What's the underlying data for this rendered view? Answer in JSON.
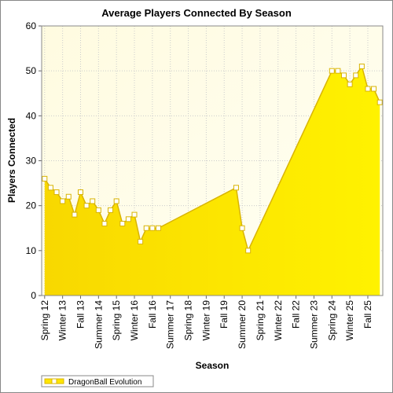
{
  "chart_data": {
    "type": "area",
    "title": "Average Players Connected By Season",
    "x_label": "Season",
    "y_label": "Players Connected",
    "categories": [
      "Spring 12",
      null,
      null,
      "Winter 13",
      null,
      null,
      "Fall 13",
      null,
      null,
      "Summer 14",
      null,
      null,
      "Spring 15",
      null,
      null,
      "Winter 16",
      null,
      null,
      "Fall 16",
      null,
      null,
      "Summer 17",
      null,
      null,
      "Spring 18",
      null,
      null,
      "Winter 19",
      null,
      null,
      "Fall 19",
      null,
      null,
      "Summer 20",
      null,
      null,
      "Spring 21",
      null,
      null,
      "Winter 22",
      null,
      null,
      "Fall 22",
      null,
      null,
      "Summer 23",
      null,
      null,
      "Spring 24",
      null,
      null,
      "Winter 25",
      null,
      null,
      "Fall 25",
      null,
      null
    ],
    "series": [
      {
        "name": "DragonBall Evolution",
        "color": "#d9b400",
        "values": [
          26,
          24,
          23,
          21,
          22,
          18,
          23,
          20,
          21,
          19,
          16,
          19,
          21,
          16,
          17,
          18,
          12,
          15,
          15,
          15,
          null,
          null,
          null,
          null,
          null,
          null,
          null,
          null,
          null,
          null,
          null,
          null,
          24,
          15,
          10,
          null,
          null,
          null,
          null,
          null,
          null,
          null,
          null,
          null,
          null,
          null,
          null,
          null,
          50,
          50,
          49,
          47,
          49,
          51,
          46,
          46,
          43
        ]
      }
    ],
    "connect_gaps": true,
    "ylim": [
      0,
      60
    ],
    "yticks": [
      0,
      10,
      20,
      30,
      40,
      50,
      60
    ],
    "grid": true,
    "legend": "bottom-left"
  }
}
